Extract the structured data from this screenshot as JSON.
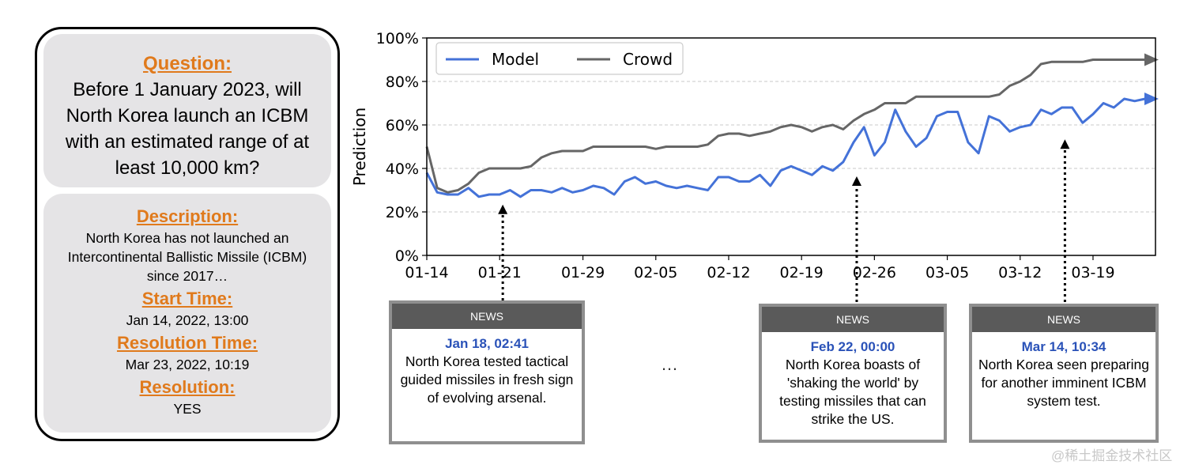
{
  "question_panel": {
    "question_heading": "Question:",
    "question_text": "Before 1 January 2023, will North Korea launch an ICBM with an estimated range of at least 10,000 km?",
    "description_heading": "Description:",
    "description_text": "North Korea has not launched an Intercontinental Ballistic Missile (ICBM) since 2017…",
    "start_heading": "Start Time:",
    "start_value": "Jan 14, 2022, 13:00",
    "resolution_time_heading": "Resolution Time:",
    "resolution_time_value": "Mar 23, 2022, 10:19",
    "resolution_heading": "Resolution:",
    "resolution_value": "YES"
  },
  "chart_data": {
    "type": "line",
    "title": "",
    "xlabel": "",
    "ylabel": "Prediction",
    "ylim": [
      0,
      100
    ],
    "yticks": [
      "0%",
      "20%",
      "40%",
      "60%",
      "80%",
      "100%"
    ],
    "xlim": [
      0,
      70
    ],
    "xtick_labels": [
      "01-14",
      "01-21",
      "01-29",
      "02-05",
      "02-12",
      "02-19",
      "02-26",
      "03-05",
      "03-12",
      "03-19"
    ],
    "xtick_positions": [
      0,
      7,
      15,
      22,
      29,
      36,
      43,
      50,
      57,
      64
    ],
    "grid": "horizontal dashed",
    "legend_position": "top-left",
    "colors": {
      "model": "#4472d8",
      "crowd": "#666666"
    },
    "series": [
      {
        "name": "Model",
        "x": [
          0,
          1,
          2,
          3,
          4,
          5,
          6,
          7,
          8,
          9,
          10,
          11,
          12,
          13,
          14,
          15,
          16,
          17,
          18,
          19,
          20,
          21,
          22,
          23,
          24,
          25,
          26,
          27,
          28,
          29,
          30,
          31,
          32,
          33,
          34,
          35,
          36,
          37,
          38,
          39,
          40,
          41,
          42,
          43,
          44,
          45,
          46,
          47,
          48,
          49,
          50,
          51,
          52,
          53,
          54,
          55,
          56,
          57,
          58,
          59,
          60,
          61,
          62,
          63,
          64,
          65,
          66,
          67,
          68,
          69,
          70
        ],
        "values": [
          38,
          29,
          28,
          28,
          31,
          27,
          28,
          28,
          30,
          27,
          30,
          30,
          29,
          31,
          29,
          30,
          32,
          31,
          28,
          34,
          36,
          33,
          34,
          32,
          31,
          32,
          31,
          30,
          36,
          36,
          34,
          34,
          37,
          32,
          39,
          41,
          39,
          37,
          41,
          39,
          43,
          52,
          59,
          46,
          52,
          67,
          57,
          50,
          54,
          64,
          66,
          66,
          52,
          47,
          64,
          62,
          57,
          59,
          60,
          67,
          65,
          68,
          68,
          61,
          65,
          70,
          68,
          72,
          71,
          72,
          72
        ]
      },
      {
        "name": "Crowd",
        "x": [
          0,
          1,
          2,
          3,
          4,
          5,
          6,
          7,
          8,
          9,
          10,
          11,
          12,
          13,
          14,
          15,
          16,
          17,
          18,
          19,
          20,
          21,
          22,
          23,
          24,
          25,
          26,
          27,
          28,
          29,
          30,
          31,
          32,
          33,
          34,
          35,
          36,
          37,
          38,
          39,
          40,
          41,
          42,
          43,
          44,
          45,
          46,
          47,
          48,
          49,
          50,
          51,
          52,
          53,
          54,
          55,
          56,
          57,
          58,
          59,
          60,
          61,
          62,
          63,
          64,
          65,
          66,
          67,
          68,
          69,
          70
        ],
        "values": [
          50,
          31,
          29,
          30,
          33,
          38,
          40,
          40,
          40,
          40,
          41,
          45,
          47,
          48,
          48,
          48,
          50,
          50,
          50,
          50,
          50,
          50,
          49,
          50,
          50,
          50,
          50,
          51,
          55,
          56,
          56,
          55,
          56,
          57,
          59,
          60,
          59,
          57,
          59,
          60,
          58,
          62,
          65,
          67,
          70,
          70,
          70,
          73,
          73,
          73,
          73,
          73,
          73,
          73,
          73,
          74,
          78,
          80,
          83,
          88,
          89,
          89,
          89,
          89,
          90,
          90,
          90,
          90,
          90,
          90,
          90
        ]
      }
    ],
    "annotations": [
      {
        "x": 7.3,
        "y": 27
      },
      {
        "x": 41.3,
        "y": 40
      },
      {
        "x": 61.3,
        "y": 57
      }
    ]
  },
  "news": [
    {
      "header": "NEWS",
      "date": "Jan 18, 02:41",
      "text": "North Korea tested tactical guided missiles in fresh sign of evolving arsenal."
    },
    {
      "header": "NEWS",
      "date": "Feb 22, 00:00",
      "text": "North Korea boasts of 'shaking the world' by testing missiles that can strike the US."
    },
    {
      "header": "NEWS",
      "date": "Mar 14, 10:34",
      "text": "North Korea seen preparing for another imminent ICBM system test."
    }
  ],
  "ellipsis": "…",
  "watermark": "@稀土掘金技术社区"
}
